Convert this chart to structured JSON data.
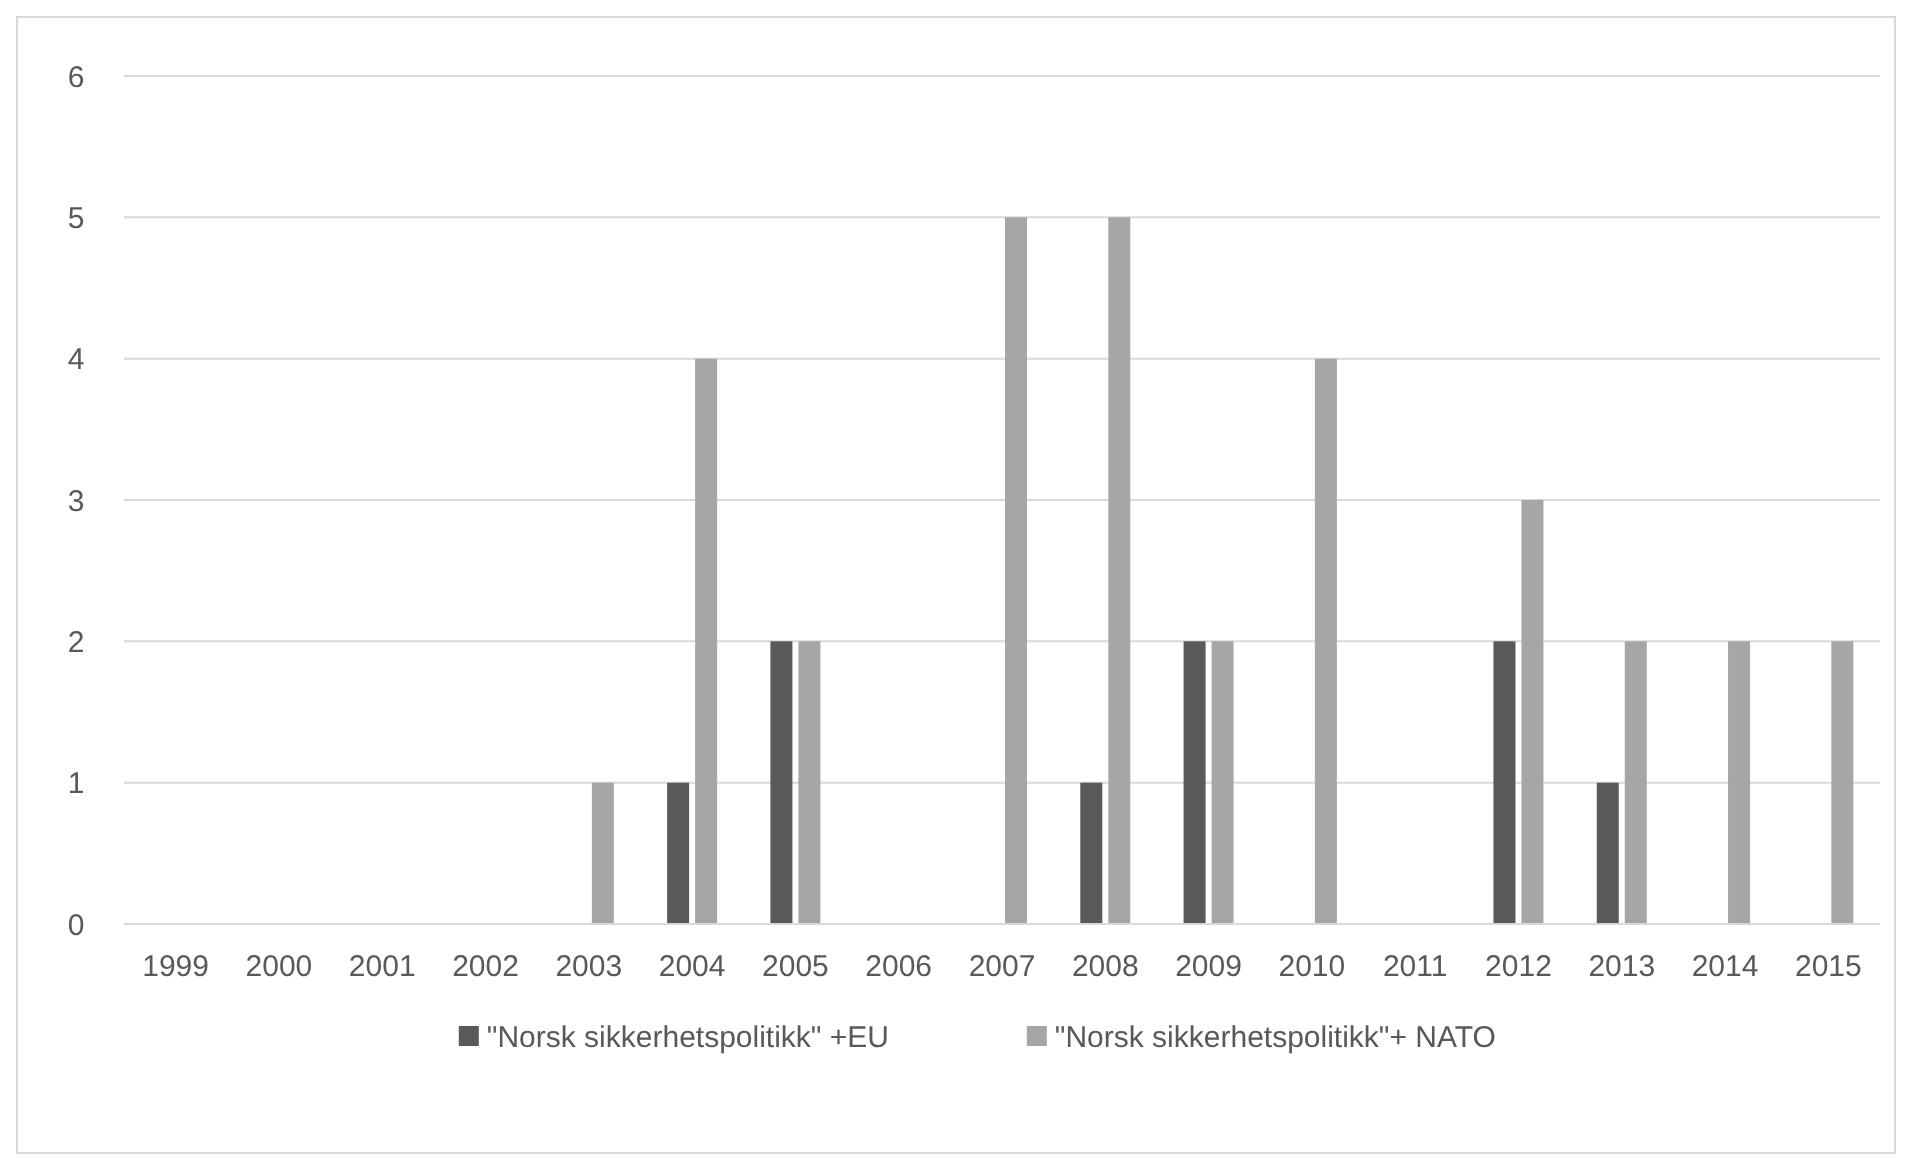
{
  "chart_data": {
    "type": "bar",
    "categories": [
      "1999",
      "2000",
      "2001",
      "2002",
      "2003",
      "2004",
      "2005",
      "2006",
      "2007",
      "2008",
      "2009",
      "2010",
      "2011",
      "2012",
      "2013",
      "2014",
      "2015"
    ],
    "series": [
      {
        "name": "\"Norsk sikkerhetspolitikk\" +EU",
        "color": "#595959",
        "values": [
          0,
          0,
          0,
          0,
          0,
          1,
          2,
          0,
          0,
          1,
          2,
          0,
          0,
          2,
          1,
          0,
          0
        ]
      },
      {
        "name": "\"Norsk sikkerhetspolitikk\"+ NATO",
        "color": "#a6a6a6",
        "values": [
          0,
          0,
          0,
          0,
          1,
          4,
          2,
          0,
          5,
          5,
          2,
          4,
          0,
          3,
          2,
          2,
          2
        ]
      }
    ],
    "ylim": [
      0,
      6
    ],
    "yticks": [
      0,
      1,
      2,
      3,
      4,
      5,
      6
    ],
    "grid": "y",
    "legend": "bottom"
  }
}
